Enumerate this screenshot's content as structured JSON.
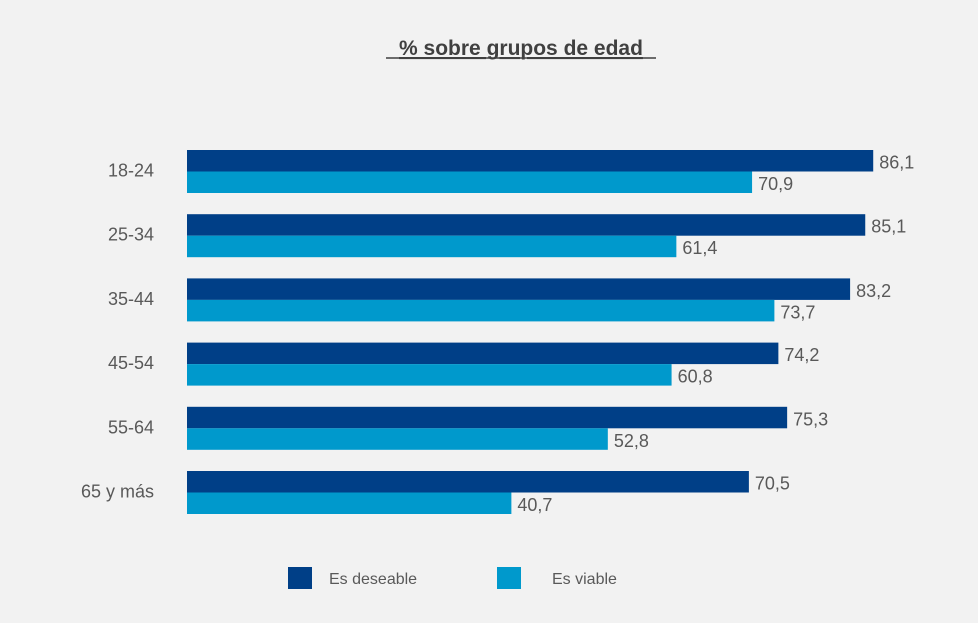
{
  "chart_data": {
    "type": "bar",
    "orientation": "horizontal",
    "title": "% sobre grupos de edad",
    "categories": [
      "18-24",
      "25-34",
      "35-44",
      "45-54",
      "55-64",
      "65 y más"
    ],
    "series": [
      {
        "name": "Es deseable",
        "color": "#003f87",
        "values": [
          86.1,
          85.1,
          83.2,
          74.2,
          75.3,
          70.5
        ],
        "labels": [
          "86,1",
          "85,1",
          "83,2",
          "74,2",
          "75,3",
          "70,5"
        ]
      },
      {
        "name": "Es viable",
        "color": "#0099cc",
        "values": [
          70.9,
          61.4,
          73.7,
          60.8,
          52.8,
          40.7
        ],
        "labels": [
          "70,9",
          "61,4",
          "73,7",
          "60,8",
          "52,8",
          "40,7"
        ]
      }
    ],
    "xlim": [
      0,
      100
    ],
    "grid": false,
    "legend": "bottom"
  }
}
